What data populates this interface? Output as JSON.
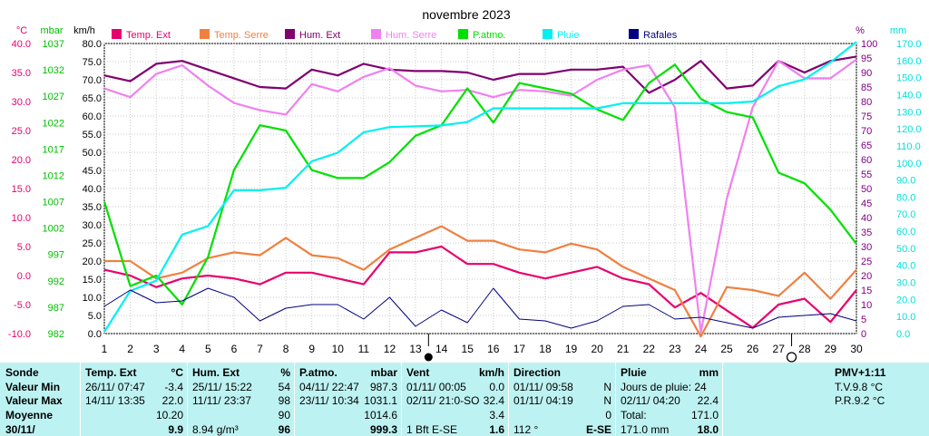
{
  "chart_data": {
    "type": "line",
    "title": "novembre 2023",
    "x": [
      1,
      2,
      3,
      4,
      5,
      6,
      7,
      8,
      9,
      10,
      11,
      12,
      13,
      14,
      15,
      16,
      17,
      18,
      19,
      20,
      21,
      22,
      23,
      24,
      25,
      26,
      27,
      28,
      29,
      30
    ],
    "x_ticks": [
      "1",
      "2",
      "3",
      "4",
      "5",
      "6",
      "7",
      "8",
      "9",
      "10",
      "11",
      "12",
      "13",
      "14",
      "15",
      "16",
      "17",
      "18",
      "19",
      "20",
      "21",
      "22",
      "23",
      "24",
      "25",
      "26",
      "27",
      "28",
      "29",
      "30"
    ],
    "axes": {
      "temp": {
        "unit": "°C",
        "range": [
          -10,
          40
        ],
        "ticks": [
          "-10.0",
          "-5.0",
          "0.0",
          "5.0",
          "10.0",
          "15.0",
          "20.0",
          "25.0",
          "30.0",
          "35.0",
          "40.0"
        ],
        "color": "#e8006e"
      },
      "pressure": {
        "unit": "mbar",
        "range": [
          982,
          1037
        ],
        "ticks": [
          "982",
          "987",
          "992",
          "997",
          "1002",
          "1007",
          "1012",
          "1017",
          "1022",
          "1027",
          "1032",
          "1037"
        ],
        "color": "#00c000"
      },
      "wind": {
        "unit": "km/h",
        "range": [
          0,
          80
        ],
        "ticks": [
          "0.0",
          "5.0",
          "10.0",
          "15.0",
          "20.0",
          "25.0",
          "30.0",
          "35.0",
          "40.0",
          "45.0",
          "50.0",
          "55.0",
          "60.0",
          "65.0",
          "70.0",
          "75.0",
          "80.0"
        ],
        "color": "#000000"
      },
      "humidity": {
        "unit": "%",
        "range": [
          0,
          100
        ],
        "ticks": [
          "0",
          "5",
          "10",
          "15",
          "20",
          "25",
          "30",
          "35",
          "40",
          "45",
          "50",
          "55",
          "60",
          "65",
          "70",
          "75",
          "80",
          "85",
          "90",
          "95",
          "100"
        ],
        "color": "#800080"
      },
      "rain": {
        "unit": "mm",
        "range": [
          0,
          170
        ],
        "ticks": [
          "0.0",
          "10.0",
          "20.0",
          "30.0",
          "40.0",
          "50.0",
          "60.0",
          "70.0",
          "80.0",
          "90.0",
          "100.0",
          "110.0",
          "120.0",
          "130.0",
          "140.0",
          "150.0",
          "160.0",
          "170.0"
        ],
        "color": "#00e0e0"
      }
    },
    "series": [
      {
        "name": "Temp. Ext",
        "axis": "temp",
        "color": "#e8006e",
        "marker": "#e8006e",
        "values": [
          1.0,
          0.0,
          -2.0,
          -0.5,
          0.0,
          -0.5,
          -1.5,
          0.5,
          0.5,
          -0.5,
          -1.5,
          4.0,
          4.0,
          5.0,
          2.0,
          2.0,
          0.5,
          -0.5,
          0.5,
          1.5,
          -0.5,
          -1.5,
          -5.5,
          -3.0,
          -6.0,
          -9.0,
          -5.0,
          -4.0,
          -8.0,
          -2.5
        ]
      },
      {
        "name": "Temp. Serre",
        "axis": "temp",
        "color": "#f08040",
        "marker": "#f08040",
        "values": [
          2.5,
          2.5,
          -0.5,
          0.5,
          3.0,
          4.0,
          3.5,
          6.5,
          3.5,
          3.0,
          1.0,
          4.5,
          6.5,
          8.5,
          6.0,
          6.0,
          4.5,
          4.0,
          5.5,
          4.5,
          1.5,
          -0.5,
          -2.5,
          -10.5,
          -2.0,
          -2.5,
          -3.5,
          0.5,
          -4.0,
          1.0
        ]
      },
      {
        "name": "Hum. Ext",
        "axis": "humidity",
        "color": "#800070",
        "marker": "#800070",
        "values": [
          89,
          87,
          93,
          94,
          91,
          88,
          85,
          84.5,
          91,
          89,
          93,
          91,
          90.5,
          90.5,
          90,
          87.5,
          89.5,
          89.5,
          91,
          91,
          92,
          83,
          87.5,
          94,
          84.5,
          85.5,
          94,
          90,
          94,
          95.5
        ]
      },
      {
        "name": "Hum. Serre",
        "axis": "humidity",
        "color": "#f080f0",
        "marker": "#f080f0",
        "values": [
          84.5,
          81.5,
          89.5,
          92.5,
          85.5,
          79.5,
          77,
          75.5,
          86,
          83.5,
          88.5,
          91.5,
          85.5,
          83.5,
          84,
          81.5,
          84,
          83.5,
          82,
          87.5,
          91,
          92.5,
          78,
          0.5,
          46.5,
          78,
          94,
          88,
          88,
          94.5
        ]
      },
      {
        "name": "P.atmo.",
        "axis": "pressure",
        "color": "#00e000",
        "marker": "#00e000",
        "values": [
          1007,
          991,
          993,
          987.5,
          996.5,
          1013,
          1021.5,
          1020.5,
          1013,
          1011.5,
          1011.5,
          1014.5,
          1019.5,
          1021.5,
          1028.5,
          1022,
          1029.5,
          1028.5,
          1027.5,
          1024.5,
          1022.5,
          1029.5,
          1033,
          1026.5,
          1024,
          1023,
          1012.5,
          1010.5,
          1005.5,
          999
        ]
      },
      {
        "name": "Pluie",
        "axis": "rain",
        "color": "#00f0f0",
        "marker": "#00f0f0",
        "values": [
          1,
          25,
          31,
          58,
          63,
          84,
          84,
          85.5,
          101,
          106,
          118,
          121,
          121.5,
          122,
          124,
          132,
          132,
          132,
          132,
          132,
          135,
          135,
          135,
          135,
          135,
          136,
          145,
          149,
          159,
          171
        ]
      },
      {
        "name": "Rafales",
        "axis": "wind",
        "color": "#000080",
        "marker": "#000080",
        "values": [
          7.5,
          12,
          8.5,
          9,
          12.5,
          10,
          3.5,
          7,
          8,
          8,
          4,
          10,
          2,
          6.5,
          3,
          12.5,
          4,
          3.5,
          1.5,
          3.5,
          7.5,
          8,
          4,
          4.5,
          3,
          1.5,
          4.5,
          5,
          5.5,
          3.5
        ]
      }
    ],
    "moon_markers": [
      {
        "day": 13.5,
        "symbol": "●",
        "name": "new-moon-marker"
      },
      {
        "day": 27.5,
        "symbol": "○",
        "name": "full-moon-marker"
      }
    ],
    "grid": true,
    "legend": "top"
  },
  "table": {
    "col1": {
      "header": "Sonde",
      "rows": [
        "Valeur Min",
        "Valeur Max",
        "Moyenne",
        "30/11/"
      ]
    },
    "col2": {
      "header": "Temp. Ext",
      "unit": "°C",
      "rows": [
        [
          "26/11/ 07:47",
          "-3.4"
        ],
        [
          "14/11/ 13:35",
          "22.0"
        ],
        [
          "",
          "10.20"
        ],
        [
          "",
          "9.9"
        ]
      ]
    },
    "col3": {
      "header": "Hum. Ext",
      "unit": "%",
      "rows": [
        [
          "25/11/ 15:22",
          "54"
        ],
        [
          "11/11/ 23:37",
          "98"
        ],
        [
          "",
          "90"
        ],
        [
          "8.94 g/m³",
          "96"
        ]
      ]
    },
    "col4": {
      "header": "P.atmo.",
      "unit": "mbar",
      "rows": [
        [
          "04/11/ 22:47",
          "987.3"
        ],
        [
          "23/11/ 10:34",
          "1031.1"
        ],
        [
          "",
          "1014.6"
        ],
        [
          "",
          "999.3"
        ]
      ]
    },
    "col5": {
      "header": "Vent",
      "unit": "km/h",
      "rows": [
        [
          "01/11/ 00:05",
          "0.0"
        ],
        [
          "02/11/ 21:0-SO",
          "32.4"
        ],
        [
          "",
          "3.4"
        ],
        [
          "1 Bft E-SE",
          "1.6"
        ]
      ]
    },
    "col6": {
      "header": "Direction",
      "rows": [
        [
          "01/11/ 09:58",
          "N"
        ],
        [
          "01/11/ 04:19",
          "N"
        ],
        [
          "",
          "0"
        ],
        [
          "112 °",
          "E-SE"
        ]
      ]
    },
    "col7": {
      "header": "Pluie",
      "unit": "mm",
      "rows": [
        [
          "Jours de pluie: 24",
          ""
        ],
        [
          "02/11/ 04:20",
          "22.4"
        ],
        [
          "Total:",
          "171.0"
        ],
        [
          "171.0 mm",
          "18.0"
        ]
      ]
    },
    "col8": {
      "header": "PMV+1:11",
      "rows": [
        "T.V.9.8 °C",
        "P.R.9.2 °C"
      ]
    }
  }
}
